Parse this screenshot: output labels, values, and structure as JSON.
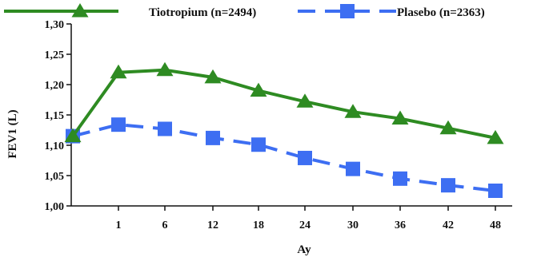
{
  "chart_data": {
    "type": "line",
    "xlabel": "Ay",
    "ylabel": "FEV1 (L)",
    "categories": [
      "0",
      "1",
      "6",
      "12",
      "18",
      "24",
      "30",
      "36",
      "42",
      "48"
    ],
    "tick_labels": [
      "",
      "1",
      "6",
      "12",
      "18",
      "24",
      "30",
      "36",
      "42",
      "48"
    ],
    "ylim": [
      1.0,
      1.3
    ],
    "yticks": [
      1.0,
      1.05,
      1.1,
      1.15,
      1.2,
      1.25,
      1.3
    ],
    "ytick_labels": [
      "1,00",
      "1,05",
      "1,10",
      "1,15",
      "1,20",
      "1,25",
      "1,30"
    ],
    "grid": false,
    "legend_position": "top",
    "series": [
      {
        "name": "Tiotropium (n=2494)",
        "color": "#2e8b22",
        "marker": "triangle",
        "dash": "solid",
        "values": [
          1.115,
          1.22,
          1.224,
          1.212,
          1.19,
          1.172,
          1.155,
          1.144,
          1.128,
          1.112
        ]
      },
      {
        "name": "Plasebo (n=2363)",
        "color": "#3d6ef2",
        "marker": "square",
        "dash": "dashed",
        "values": [
          1.115,
          1.134,
          1.127,
          1.112,
          1.101,
          1.079,
          1.061,
          1.045,
          1.034,
          1.025
        ]
      }
    ]
  }
}
